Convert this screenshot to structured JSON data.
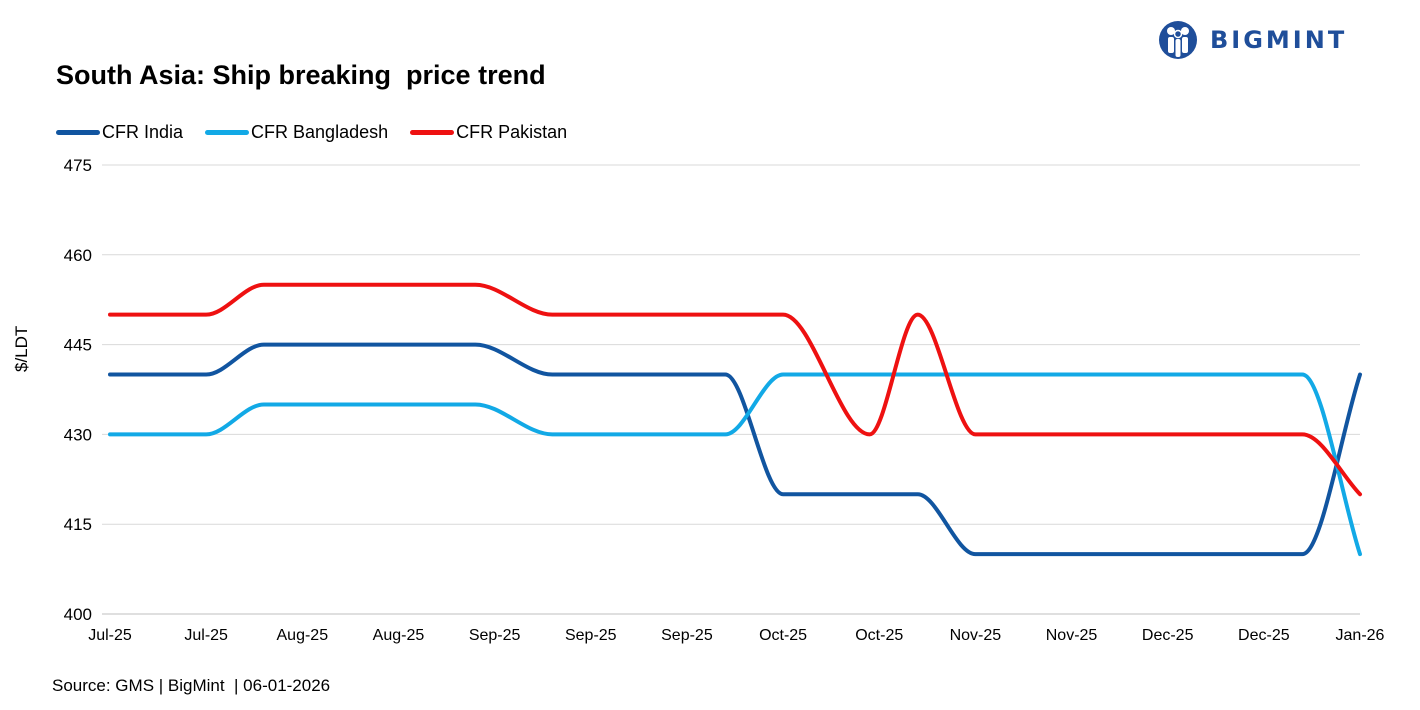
{
  "logo": {
    "text": "BIGMINT",
    "icon": "bigmint-people-icon",
    "color": "#1f4e9a"
  },
  "chart_data": {
    "type": "line",
    "title": "South Asia: Ship breaking  price trend",
    "xlabel": "",
    "ylabel": "$/LDT",
    "ylim": [
      400,
      475
    ],
    "yticks": [
      400,
      415,
      430,
      445,
      460,
      475
    ],
    "grid": true,
    "legend_position": "top-left",
    "categories": [
      "Jul-25",
      "Jul-25",
      "Aug-25",
      "Aug-25",
      "Sep-25",
      "Sep-25",
      "Sep-25",
      "Oct-25",
      "Oct-25",
      "Nov-25",
      "Nov-25",
      "Dec-25",
      "Dec-25",
      "Jan-26"
    ],
    "x": [
      0,
      1,
      1.6,
      2,
      3,
      3.8,
      4.6,
      5,
      6,
      6.4,
      7,
      7.9,
      8.4,
      9,
      10,
      11,
      12,
      12.4,
      13
    ],
    "series": [
      {
        "name": "CFR India",
        "color": "#1155a0",
        "values": [
          440,
          440,
          445,
          445,
          445,
          445,
          440,
          440,
          440,
          440,
          420,
          420,
          420,
          410,
          410,
          410,
          410,
          410,
          440
        ]
      },
      {
        "name": "CFR Bangladesh",
        "color": "#12a9e6",
        "values": [
          430,
          430,
          435,
          435,
          435,
          435,
          430,
          430,
          430,
          430,
          440,
          440,
          440,
          440,
          440,
          440,
          440,
          440,
          410
        ]
      },
      {
        "name": "CFR Pakistan",
        "color": "#ee1111",
        "values": [
          450,
          450,
          455,
          455,
          455,
          455,
          450,
          450,
          450,
          450,
          450,
          430,
          450,
          430,
          430,
          430,
          430,
          430,
          420
        ]
      }
    ]
  },
  "source": "Source: GMS | BigMint  | 06-01-2026"
}
